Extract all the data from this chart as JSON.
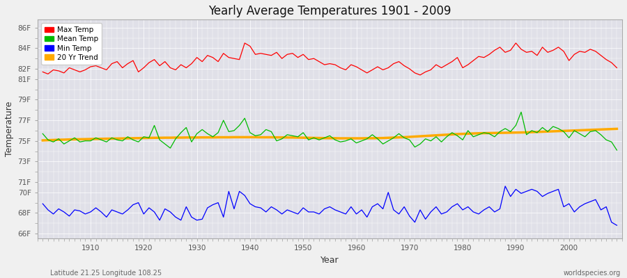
{
  "title": "Yearly Average Temperatures 1901 - 2009",
  "xlabel": "Year",
  "ylabel": "Temperature",
  "x_start": 1901,
  "x_end": 2009,
  "ytick_labels": [
    "66F",
    "68F",
    "70F",
    "71F",
    "73F",
    "75F",
    "77F",
    "79F",
    "81F",
    "82F",
    "84F",
    "86F"
  ],
  "ytick_vals": [
    66,
    68,
    70,
    71,
    73,
    75,
    77,
    79,
    81,
    82,
    84,
    86
  ],
  "xticks": [
    1910,
    1920,
    1930,
    1940,
    1950,
    1960,
    1970,
    1980,
    1990,
    2000
  ],
  "ylim": [
    65.5,
    86.8
  ],
  "xlim": [
    1900,
    2010
  ],
  "plot_bg_color": "#e0e0e8",
  "fig_bg_color": "#f0f0f0",
  "grid_color": "#ffffff",
  "line_colors": {
    "max": "#ff0000",
    "mean": "#00bb00",
    "min": "#0000ff",
    "trend": "#ffaa00"
  },
  "legend_labels": [
    "Max Temp",
    "Mean Temp",
    "Min Temp",
    "20 Yr Trend"
  ],
  "footer_left": "Latitude 21.25 Longitude 108.25",
  "footer_right": "worldspecies.org",
  "max_temp": [
    81.7,
    81.5,
    81.9,
    81.8,
    81.6,
    82.1,
    81.9,
    81.7,
    81.9,
    82.2,
    82.3,
    82.1,
    81.9,
    82.5,
    82.7,
    82.1,
    82.5,
    82.8,
    81.7,
    82.1,
    82.6,
    82.9,
    82.3,
    82.7,
    82.1,
    81.9,
    82.4,
    82.1,
    82.5,
    83.1,
    82.7,
    83.3,
    83.1,
    82.7,
    83.5,
    83.1,
    83.0,
    82.9,
    84.5,
    84.2,
    83.4,
    83.5,
    83.4,
    83.3,
    83.6,
    83.0,
    83.4,
    83.5,
    83.1,
    83.4,
    82.9,
    83.0,
    82.7,
    82.4,
    82.5,
    82.4,
    82.1,
    81.9,
    82.4,
    82.2,
    81.9,
    81.6,
    81.9,
    82.2,
    81.9,
    82.1,
    82.5,
    82.7,
    82.3,
    82.0,
    81.6,
    81.4,
    81.7,
    81.9,
    82.4,
    82.1,
    82.4,
    82.7,
    83.1,
    82.1,
    82.4,
    82.8,
    83.2,
    83.1,
    83.4,
    83.8,
    84.1,
    83.6,
    83.8,
    84.5,
    83.9,
    83.6,
    83.7,
    83.3,
    84.1,
    83.6,
    83.8,
    84.1,
    83.7,
    82.8,
    83.4,
    83.7,
    83.6,
    83.9,
    83.7,
    83.3,
    82.9,
    82.6,
    82.1
  ],
  "mean_temp": [
    75.7,
    75.1,
    74.9,
    75.2,
    74.7,
    75.0,
    75.3,
    74.9,
    75.0,
    75.0,
    75.3,
    75.1,
    74.9,
    75.3,
    75.1,
    75.0,
    75.4,
    75.1,
    74.9,
    75.4,
    75.3,
    76.5,
    75.1,
    74.7,
    74.3,
    75.2,
    75.8,
    76.3,
    74.9,
    75.7,
    76.1,
    75.7,
    75.4,
    75.8,
    77.0,
    75.9,
    76.0,
    76.5,
    77.2,
    75.8,
    75.5,
    75.6,
    76.1,
    75.9,
    75.0,
    75.2,
    75.6,
    75.5,
    75.4,
    75.8,
    75.1,
    75.3,
    75.1,
    75.3,
    75.5,
    75.1,
    74.9,
    75.0,
    75.2,
    74.8,
    75.0,
    75.2,
    75.6,
    75.2,
    74.7,
    75.0,
    75.3,
    75.7,
    75.3,
    75.1,
    74.4,
    74.7,
    75.2,
    75.0,
    75.4,
    74.9,
    75.4,
    75.8,
    75.5,
    75.1,
    76.0,
    75.4,
    75.6,
    75.8,
    75.7,
    75.4,
    75.9,
    76.2,
    75.9,
    76.5,
    77.8,
    75.6,
    76.0,
    75.8,
    76.3,
    75.9,
    76.4,
    76.2,
    75.9,
    75.3,
    76.0,
    75.7,
    75.4,
    75.9,
    76.0,
    75.6,
    75.1,
    74.9,
    74.1
  ],
  "min_temp": [
    68.9,
    68.3,
    67.9,
    68.4,
    68.1,
    67.7,
    68.3,
    68.2,
    67.9,
    68.1,
    68.5,
    68.1,
    67.6,
    68.3,
    68.1,
    67.9,
    68.3,
    68.8,
    69.0,
    67.9,
    68.5,
    68.1,
    67.3,
    68.4,
    68.1,
    67.6,
    67.3,
    68.6,
    67.6,
    67.3,
    67.4,
    68.5,
    68.8,
    69.0,
    67.6,
    70.1,
    68.4,
    70.1,
    69.7,
    68.9,
    68.6,
    68.5,
    68.1,
    68.6,
    68.3,
    67.9,
    68.3,
    68.1,
    67.9,
    68.5,
    68.1,
    68.1,
    67.9,
    68.4,
    68.6,
    68.3,
    68.1,
    67.9,
    68.6,
    67.9,
    68.3,
    67.6,
    68.6,
    68.9,
    68.4,
    70.0,
    68.3,
    67.9,
    68.6,
    67.7,
    67.1,
    68.3,
    67.4,
    68.1,
    68.6,
    67.9,
    68.1,
    68.6,
    68.9,
    68.3,
    68.6,
    68.1,
    67.9,
    68.3,
    68.6,
    68.1,
    68.4,
    70.6,
    69.6,
    70.3,
    69.9,
    70.1,
    70.3,
    70.1,
    69.6,
    69.9,
    70.1,
    70.3,
    68.6,
    68.9,
    68.1,
    68.6,
    68.9,
    69.1,
    69.3,
    68.3,
    68.6,
    67.1,
    66.8
  ],
  "trend": [
    75.05,
    75.07,
    75.09,
    75.11,
    75.12,
    75.14,
    75.15,
    75.16,
    75.17,
    75.18,
    75.19,
    75.2,
    75.21,
    75.22,
    75.23,
    75.24,
    75.25,
    75.26,
    75.27,
    75.28,
    75.29,
    75.3,
    75.3,
    75.31,
    75.31,
    75.32,
    75.32,
    75.33,
    75.33,
    75.33,
    75.34,
    75.34,
    75.34,
    75.35,
    75.35,
    75.35,
    75.36,
    75.36,
    75.36,
    75.36,
    75.36,
    75.35,
    75.35,
    75.35,
    75.34,
    75.34,
    75.33,
    75.33,
    75.32,
    75.31,
    75.3,
    75.29,
    75.28,
    75.27,
    75.26,
    75.26,
    75.25,
    75.25,
    75.25,
    75.25,
    75.25,
    75.26,
    75.26,
    75.27,
    75.28,
    75.3,
    75.32,
    75.34,
    75.36,
    75.39,
    75.42,
    75.45,
    75.48,
    75.51,
    75.54,
    75.57,
    75.6,
    75.63,
    75.66,
    75.68,
    75.7,
    75.72,
    75.74,
    75.75,
    75.76,
    75.77,
    75.78,
    75.79,
    75.8,
    75.81,
    75.82,
    75.83,
    75.85,
    75.87,
    75.89,
    75.91,
    75.93,
    75.95,
    75.97,
    75.99,
    76.01,
    76.03,
    76.05,
    76.07,
    76.09,
    76.11,
    76.13,
    76.15,
    76.17
  ]
}
